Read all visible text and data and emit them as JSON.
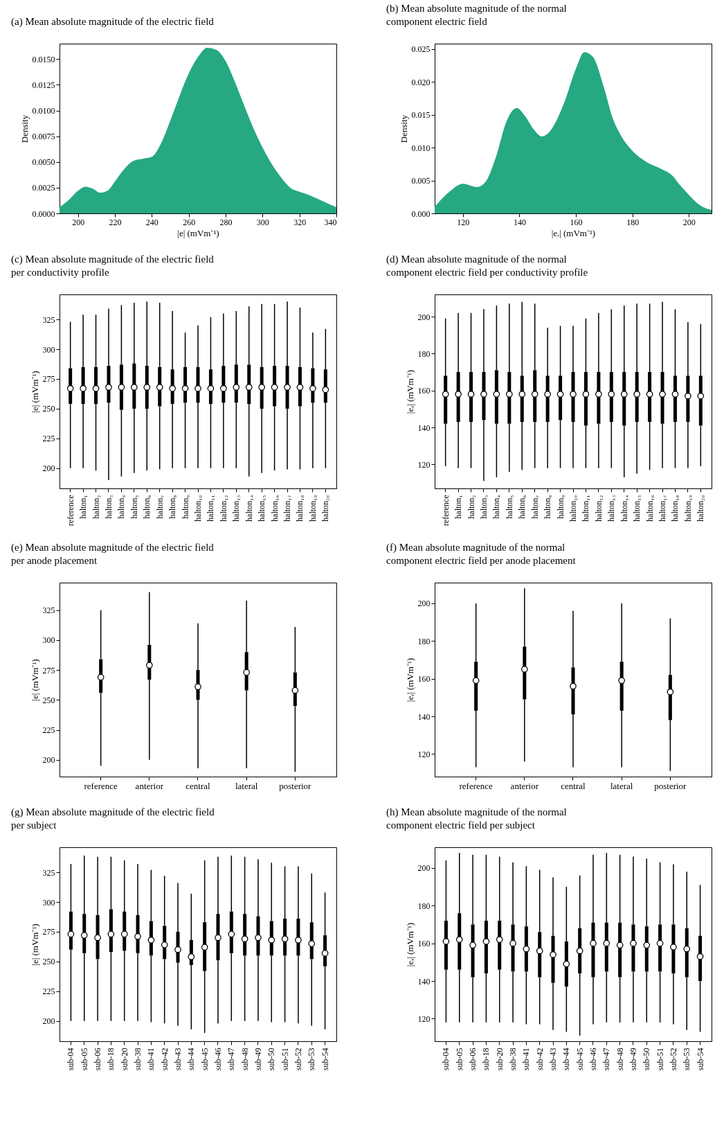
{
  "chart_data": [
    {
      "type": "area",
      "title": "(a) Mean absolute magnitude of the electric field",
      "xlabel": "|e| (mVm⁻¹)",
      "ylabel": "Density",
      "xlim": [
        190,
        340
      ],
      "xticks": [
        200,
        220,
        240,
        260,
        280,
        300,
        320,
        340
      ],
      "ylim": [
        0,
        0.0165
      ],
      "yticks": [
        {
          "value": 0,
          "label": "0.0000"
        },
        {
          "value": 0.0025,
          "label": "0.0025"
        },
        {
          "value": 0.005,
          "label": "0.0050"
        },
        {
          "value": 0.0075,
          "label": "0.0075"
        },
        {
          "value": 0.01,
          "label": "0.0100"
        },
        {
          "value": 0.0125,
          "label": "0.0125"
        },
        {
          "value": 0.015,
          "label": "0.0150"
        }
      ],
      "series": [
        {
          "color": "#26a882",
          "x": [
            190,
            195,
            200,
            204,
            208,
            212,
            216,
            220,
            225,
            230,
            235,
            240,
            245,
            250,
            255,
            260,
            265,
            270,
            275,
            280,
            285,
            290,
            295,
            300,
            305,
            310,
            315,
            320,
            325,
            330,
            335,
            340
          ],
          "values": [
            0.0006,
            0.0013,
            0.0022,
            0.0026,
            0.0024,
            0.002,
            0.0022,
            0.0031,
            0.0043,
            0.0051,
            0.0053,
            0.0055,
            0.0068,
            0.009,
            0.0114,
            0.0136,
            0.0152,
            0.0161,
            0.0159,
            0.0148,
            0.0128,
            0.0105,
            0.0083,
            0.0064,
            0.0048,
            0.0035,
            0.0025,
            0.0021,
            0.0018,
            0.0014,
            0.001,
            0.0006
          ]
        }
      ]
    },
    {
      "type": "area",
      "title": "(b) Mean absolute magnitude of the normal component electric field",
      "xlabel": "|eᵣ| (mVm⁻¹)",
      "ylabel": "Density",
      "xlim": [
        110,
        208
      ],
      "xticks": [
        120,
        140,
        160,
        180,
        200
      ],
      "ylim": [
        0,
        0.0258
      ],
      "yticks": [
        {
          "value": 0,
          "label": "0.000"
        },
        {
          "value": 0.005,
          "label": "0.005"
        },
        {
          "value": 0.01,
          "label": "0.010"
        },
        {
          "value": 0.015,
          "label": "0.015"
        },
        {
          "value": 0.02,
          "label": "0.020"
        },
        {
          "value": 0.025,
          "label": "0.025"
        }
      ],
      "series": [
        {
          "color": "#26a882",
          "x": [
            110,
            115,
            120,
            125,
            128,
            132,
            135,
            139,
            142,
            145,
            148,
            150,
            153,
            156,
            160,
            163,
            166,
            170,
            173,
            176,
            180,
            185,
            190,
            194,
            197,
            200,
            204,
            208
          ],
          "values": [
            0.001,
            0.0032,
            0.0045,
            0.004,
            0.0048,
            0.009,
            0.0135,
            0.016,
            0.0148,
            0.0128,
            0.0117,
            0.0121,
            0.014,
            0.017,
            0.022,
            0.0245,
            0.0238,
            0.019,
            0.0145,
            0.0118,
            0.0095,
            0.0078,
            0.0068,
            0.0058,
            0.0042,
            0.0028,
            0.0012,
            0.0005
          ]
        }
      ]
    },
    {
      "type": "box",
      "title": "(c) Mean absolute magnitude of the electric field per conductivity profile",
      "ylabel": "|e| (mVm⁻¹)",
      "ylim": [
        183,
        346
      ],
      "yticks": [
        200,
        225,
        250,
        275,
        300,
        325
      ],
      "categories": [
        "reference",
        "halton₁",
        "halton₂",
        "halton₃",
        "halton₄",
        "halton₅",
        "halton₆",
        "halton₇",
        "halton₈",
        "halton₉",
        "halton₁₀",
        "halton₁₁",
        "halton₁₂",
        "halton₁₃",
        "halton₁₄",
        "halton₁₅",
        "halton₁₆",
        "halton₁₇",
        "halton₁₈",
        "halton₁₉",
        "halton₂₀"
      ],
      "boxes": [
        {
          "low": 200,
          "q1": 254,
          "median": 267,
          "q3": 284,
          "high": 323
        },
        {
          "low": 200,
          "q1": 254,
          "median": 267,
          "q3": 285,
          "high": 329
        },
        {
          "low": 198,
          "q1": 254,
          "median": 267,
          "q3": 285,
          "high": 329
        },
        {
          "low": 190,
          "q1": 255,
          "median": 268,
          "q3": 286,
          "high": 334
        },
        {
          "low": 193,
          "q1": 249,
          "median": 268,
          "q3": 287,
          "high": 337
        },
        {
          "low": 196,
          "q1": 250,
          "median": 268,
          "q3": 288,
          "high": 339
        },
        {
          "low": 198,
          "q1": 250,
          "median": 268,
          "q3": 286,
          "high": 340
        },
        {
          "low": 199,
          "q1": 252,
          "median": 268,
          "q3": 285,
          "high": 339
        },
        {
          "low": 200,
          "q1": 254,
          "median": 267,
          "q3": 283,
          "high": 332
        },
        {
          "low": 200,
          "q1": 255,
          "median": 267,
          "q3": 285,
          "high": 314
        },
        {
          "low": 200,
          "q1": 255,
          "median": 267,
          "q3": 285,
          "high": 320
        },
        {
          "low": 200,
          "q1": 254,
          "median": 267,
          "q3": 283,
          "high": 327
        },
        {
          "low": 200,
          "q1": 255,
          "median": 267,
          "q3": 286,
          "high": 330
        },
        {
          "low": 200,
          "q1": 255,
          "median": 268,
          "q3": 287,
          "high": 332
        },
        {
          "low": 193,
          "q1": 254,
          "median": 268,
          "q3": 287,
          "high": 336
        },
        {
          "low": 196,
          "q1": 250,
          "median": 268,
          "q3": 285,
          "high": 338
        },
        {
          "low": 198,
          "q1": 252,
          "median": 268,
          "q3": 286,
          "high": 338
        },
        {
          "low": 199,
          "q1": 250,
          "median": 268,
          "q3": 286,
          "high": 340
        },
        {
          "low": 199,
          "q1": 252,
          "median": 268,
          "q3": 285,
          "high": 335
        },
        {
          "low": 200,
          "q1": 255,
          "median": 267,
          "q3": 284,
          "high": 314
        },
        {
          "low": 200,
          "q1": 255,
          "median": 266,
          "q3": 283,
          "high": 317
        }
      ]
    },
    {
      "type": "box",
      "title": "(d) Mean absolute magnitude of the normal component electric field per conductivity profile",
      "ylabel": "|eᵣ| (mVm⁻¹)",
      "ylim": [
        107,
        212
      ],
      "yticks": [
        120,
        140,
        160,
        180,
        200
      ],
      "categories": [
        "reference",
        "halton₁",
        "halton₂",
        "halton₃",
        "halton₄",
        "halton₅",
        "halton₆",
        "halton₇",
        "halton₈",
        "halton₉",
        "halton₁₀",
        "halton₁₁",
        "halton₁₂",
        "halton₁₃",
        "halton₁₄",
        "halton₁₅",
        "halton₁₆",
        "halton₁₇",
        "halton₁₈",
        "halton₁₉",
        "halton₂₀"
      ],
      "boxes": [
        {
          "low": 119,
          "q1": 142,
          "median": 158,
          "q3": 168,
          "high": 199
        },
        {
          "low": 118,
          "q1": 143,
          "median": 158,
          "q3": 170,
          "high": 202
        },
        {
          "low": 118,
          "q1": 143,
          "median": 158,
          "q3": 170,
          "high": 202
        },
        {
          "low": 111,
          "q1": 144,
          "median": 158,
          "q3": 170,
          "high": 204
        },
        {
          "low": 113,
          "q1": 142,
          "median": 158,
          "q3": 171,
          "high": 206
        },
        {
          "low": 116,
          "q1": 142,
          "median": 158,
          "q3": 170,
          "high": 207
        },
        {
          "low": 117,
          "q1": 143,
          "median": 158,
          "q3": 168,
          "high": 208
        },
        {
          "low": 118,
          "q1": 143,
          "median": 158,
          "q3": 171,
          "high": 207
        },
        {
          "low": 118,
          "q1": 143,
          "median": 158,
          "q3": 168,
          "high": 194
        },
        {
          "low": 118,
          "q1": 144,
          "median": 158,
          "q3": 168,
          "high": 195
        },
        {
          "low": 118,
          "q1": 143,
          "median": 158,
          "q3": 170,
          "high": 195
        },
        {
          "low": 118,
          "q1": 141,
          "median": 158,
          "q3": 170,
          "high": 199
        },
        {
          "low": 118,
          "q1": 142,
          "median": 158,
          "q3": 170,
          "high": 202
        },
        {
          "low": 118,
          "q1": 143,
          "median": 158,
          "q3": 170,
          "high": 204
        },
        {
          "low": 113,
          "q1": 141,
          "median": 158,
          "q3": 170,
          "high": 206
        },
        {
          "low": 115,
          "q1": 143,
          "median": 158,
          "q3": 170,
          "high": 207
        },
        {
          "low": 117,
          "q1": 143,
          "median": 158,
          "q3": 170,
          "high": 207
        },
        {
          "low": 118,
          "q1": 142,
          "median": 158,
          "q3": 170,
          "high": 208
        },
        {
          "low": 118,
          "q1": 143,
          "median": 158,
          "q3": 168,
          "high": 204
        },
        {
          "low": 118,
          "q1": 143,
          "median": 157,
          "q3": 168,
          "high": 197
        },
        {
          "low": 119,
          "q1": 141,
          "median": 157,
          "q3": 168,
          "high": 196
        }
      ]
    },
    {
      "type": "box",
      "title": "(e) Mean absolute magnitude of the electric field per anode placement",
      "ylabel": "|e| (mVm⁻¹)",
      "ylim": [
        186,
        348
      ],
      "yticks": [
        200,
        225,
        250,
        275,
        300,
        325
      ],
      "categories": [
        "reference",
        "anterior",
        "central",
        "lateral",
        "posterior"
      ],
      "boxes": [
        {
          "low": 195,
          "q1": 256,
          "median": 269,
          "q3": 284,
          "high": 325
        },
        {
          "low": 200,
          "q1": 267,
          "median": 279,
          "q3": 296,
          "high": 340
        },
        {
          "low": 193,
          "q1": 250,
          "median": 261,
          "q3": 275,
          "high": 314
        },
        {
          "low": 193,
          "q1": 258,
          "median": 273,
          "q3": 290,
          "high": 333
        },
        {
          "low": 190,
          "q1": 245,
          "median": 258,
          "q3": 273,
          "high": 311
        }
      ]
    },
    {
      "type": "box",
      "title": "(f) Mean absolute magnitude of the normal component electric field per anode placement",
      "ylabel": "|eᵣ| (mVm⁻¹)",
      "ylim": [
        108,
        211
      ],
      "yticks": [
        120,
        140,
        160,
        180,
        200
      ],
      "categories": [
        "reference",
        "anterior",
        "central",
        "lateral",
        "posterior"
      ],
      "boxes": [
        {
          "low": 113,
          "q1": 143,
          "median": 159,
          "q3": 169,
          "high": 200
        },
        {
          "low": 116,
          "q1": 149,
          "median": 165,
          "q3": 177,
          "high": 208
        },
        {
          "low": 113,
          "q1": 141,
          "median": 156,
          "q3": 166,
          "high": 196
        },
        {
          "low": 113,
          "q1": 143,
          "median": 159,
          "q3": 169,
          "high": 200
        },
        {
          "low": 111,
          "q1": 138,
          "median": 153,
          "q3": 162,
          "high": 192
        }
      ]
    },
    {
      "type": "box",
      "title": "(g) Mean absolute magnitude of the electric field per subject",
      "ylabel": "|e| (mVm⁻¹)",
      "ylim": [
        183,
        346
      ],
      "yticks": [
        200,
        225,
        250,
        275,
        300,
        325
      ],
      "categories": [
        "sub-04",
        "sub-05",
        "sub-06",
        "sub-18",
        "sub-20",
        "sub-38",
        "sub-41",
        "sub-42",
        "sub-43",
        "sub-44",
        "sub-45",
        "sub-46",
        "sub-47",
        "sub-48",
        "sub-49",
        "sub-50",
        "sub-51",
        "sub-52",
        "sub-53",
        "sub-54"
      ],
      "boxes": [
        {
          "low": 200,
          "q1": 260,
          "median": 273,
          "q3": 292,
          "high": 332
        },
        {
          "low": 200,
          "q1": 257,
          "median": 272,
          "q3": 290,
          "high": 339
        },
        {
          "low": 200,
          "q1": 252,
          "median": 270,
          "q3": 289,
          "high": 338
        },
        {
          "low": 200,
          "q1": 258,
          "median": 273,
          "q3": 294,
          "high": 338
        },
        {
          "low": 200,
          "q1": 259,
          "median": 273,
          "q3": 292,
          "high": 335
        },
        {
          "low": 200,
          "q1": 257,
          "median": 271,
          "q3": 289,
          "high": 332
        },
        {
          "low": 199,
          "q1": 255,
          "median": 268,
          "q3": 284,
          "high": 327
        },
        {
          "low": 198,
          "q1": 252,
          "median": 264,
          "q3": 280,
          "high": 322
        },
        {
          "low": 196,
          "q1": 249,
          "median": 260,
          "q3": 275,
          "high": 316
        },
        {
          "low": 193,
          "q1": 247,
          "median": 254,
          "q3": 268,
          "high": 307
        },
        {
          "low": 190,
          "q1": 242,
          "median": 262,
          "q3": 283,
          "high": 335
        },
        {
          "low": 198,
          "q1": 251,
          "median": 270,
          "q3": 290,
          "high": 338
        },
        {
          "low": 200,
          "q1": 257,
          "median": 273,
          "q3": 292,
          "high": 339
        },
        {
          "low": 200,
          "q1": 255,
          "median": 269,
          "q3": 290,
          "high": 338
        },
        {
          "low": 200,
          "q1": 255,
          "median": 270,
          "q3": 288,
          "high": 336
        },
        {
          "low": 199,
          "q1": 255,
          "median": 268,
          "q3": 284,
          "high": 333
        },
        {
          "low": 199,
          "q1": 255,
          "median": 269,
          "q3": 286,
          "high": 330
        },
        {
          "low": 198,
          "q1": 255,
          "median": 268,
          "q3": 286,
          "high": 330
        },
        {
          "low": 196,
          "q1": 252,
          "median": 265,
          "q3": 283,
          "high": 324
        },
        {
          "low": 193,
          "q1": 246,
          "median": 257,
          "q3": 272,
          "high": 308
        }
      ]
    },
    {
      "type": "box",
      "title": "(h) Mean absolute magnitude of the normal component electric field per subject",
      "ylabel": "|eᵣ| (mVm⁻¹)",
      "ylim": [
        108,
        211
      ],
      "yticks": [
        120,
        140,
        160,
        180,
        200
      ],
      "categories": [
        "sub-04",
        "sub-05",
        "sub-06",
        "sub-18",
        "sub-20",
        "sub-38",
        "sub-41",
        "sub-42",
        "sub-43",
        "sub-44",
        "sub-45",
        "sub-46",
        "sub-47",
        "sub-48",
        "sub-49",
        "sub-50",
        "sub-51",
        "sub-52",
        "sub-53",
        "sub-54"
      ],
      "boxes": [
        {
          "low": 118,
          "q1": 146,
          "median": 161,
          "q3": 172,
          "high": 204
        },
        {
          "low": 118,
          "q1": 146,
          "median": 162,
          "q3": 176,
          "high": 208
        },
        {
          "low": 118,
          "q1": 142,
          "median": 159,
          "q3": 170,
          "high": 207
        },
        {
          "low": 118,
          "q1": 144,
          "median": 161,
          "q3": 172,
          "high": 207
        },
        {
          "low": 118,
          "q1": 146,
          "median": 162,
          "q3": 172,
          "high": 206
        },
        {
          "low": 118,
          "q1": 145,
          "median": 160,
          "q3": 170,
          "high": 203
        },
        {
          "low": 117,
          "q1": 145,
          "median": 157,
          "q3": 169,
          "high": 201
        },
        {
          "low": 117,
          "q1": 142,
          "median": 156,
          "q3": 166,
          "high": 199
        },
        {
          "low": 114,
          "q1": 139,
          "median": 154,
          "q3": 164,
          "high": 195
        },
        {
          "low": 113,
          "q1": 137,
          "median": 149,
          "q3": 161,
          "high": 190
        },
        {
          "low": 111,
          "q1": 144,
          "median": 156,
          "q3": 168,
          "high": 196
        },
        {
          "low": 117,
          "q1": 142,
          "median": 160,
          "q3": 171,
          "high": 207
        },
        {
          "low": 118,
          "q1": 145,
          "median": 160,
          "q3": 171,
          "high": 208
        },
        {
          "low": 118,
          "q1": 142,
          "median": 159,
          "q3": 171,
          "high": 207
        },
        {
          "low": 118,
          "q1": 145,
          "median": 160,
          "q3": 170,
          "high": 206
        },
        {
          "low": 118,
          "q1": 145,
          "median": 159,
          "q3": 169,
          "high": 205
        },
        {
          "low": 118,
          "q1": 145,
          "median": 160,
          "q3": 170,
          "high": 203
        },
        {
          "low": 117,
          "q1": 144,
          "median": 158,
          "q3": 170,
          "high": 202
        },
        {
          "low": 114,
          "q1": 142,
          "median": 157,
          "q3": 168,
          "high": 198
        },
        {
          "low": 113,
          "q1": 140,
          "median": 153,
          "q3": 164,
          "high": 191
        }
      ]
    }
  ]
}
